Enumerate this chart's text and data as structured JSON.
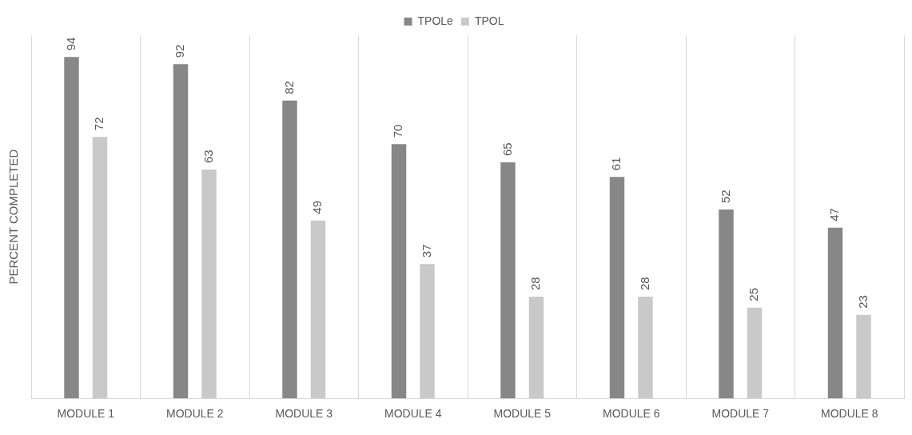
{
  "chart_data": {
    "type": "bar",
    "ylabel": "PERCENT COMPLETED",
    "categories": [
      "MODULE 1",
      "MODULE 2",
      "MODULE 3",
      "MODULE 4",
      "MODULE 5",
      "MODULE 6",
      "MODULE 7",
      "MODULE 8"
    ],
    "series": [
      {
        "name": "TPOLe",
        "color": "#878787",
        "values": [
          94,
          92,
          82,
          70,
          65,
          61,
          52,
          47
        ]
      },
      {
        "name": "TPOL",
        "color": "#c9c9c9",
        "values": [
          72,
          63,
          49,
          37,
          28,
          28,
          25,
          23
        ]
      }
    ],
    "data_labels": true,
    "grid": "x",
    "legend": "top"
  }
}
